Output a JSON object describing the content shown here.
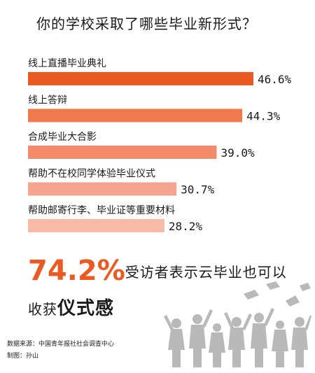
{
  "title": "你的学校采取了哪些毕业新形式？",
  "chart_data": {
    "type": "bar",
    "orientation": "horizontal",
    "categories": [
      "线上直播毕业典礼",
      "线上答辩",
      "合成毕业大合影",
      "帮助不在校同学体验毕业仪式",
      "帮助邮寄行李、毕业证等重要材料"
    ],
    "values": [
      46.6,
      44.3,
      39.0,
      30.7,
      28.2
    ],
    "value_labels": [
      "46.6%",
      "44.3%",
      "39.0%",
      "30.7%",
      "28.2%"
    ],
    "colors": [
      "#ec5a24",
      "#f07a4c",
      "#f2896a",
      "#f5a58f",
      "#f7bba8"
    ],
    "xlim": [
      0,
      46.6
    ]
  },
  "highlight": {
    "number": "74.2%",
    "line1": "受访者表示云毕业也可以",
    "line2_prefix": "收获",
    "line2_emphasis": "仪式感"
  },
  "footer": {
    "source": "数据来源：中国青年报社社会调查中心",
    "maker": "制图：孙山"
  }
}
